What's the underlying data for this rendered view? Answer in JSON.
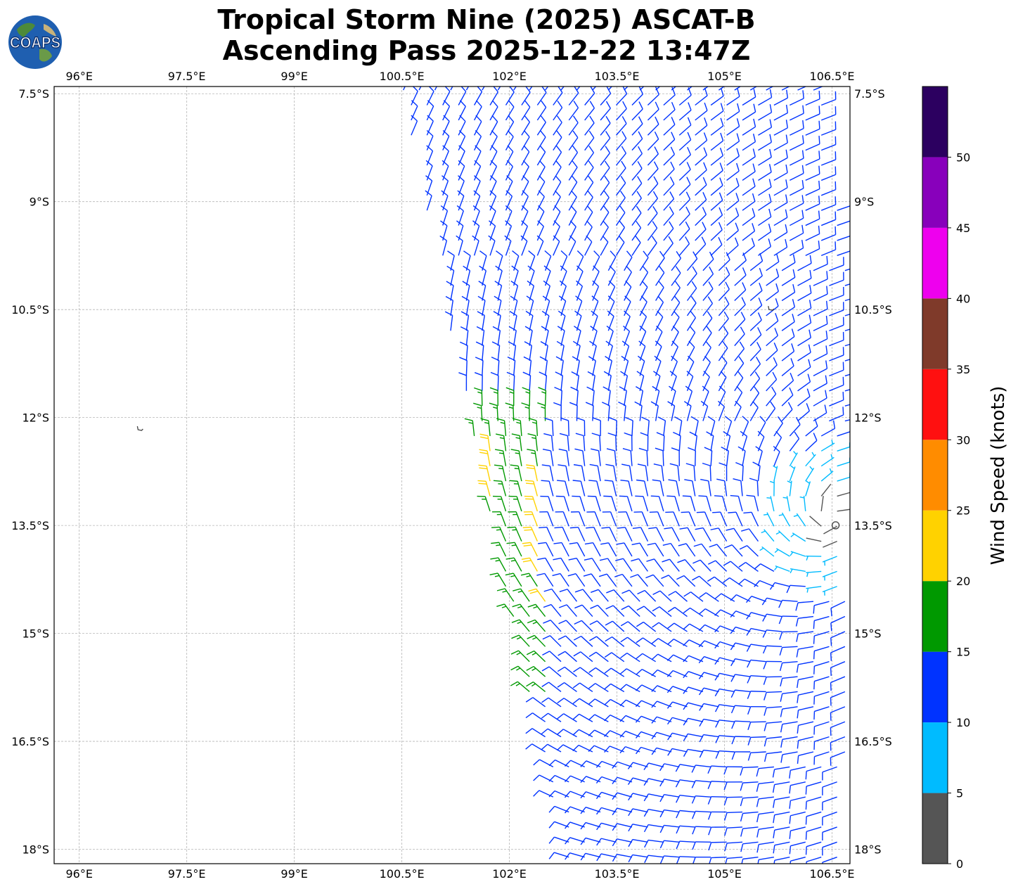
{
  "title": {
    "line1": "Tropical Storm Nine (2025) ASCAT-B",
    "line2": "Ascending Pass 2025-12-22 13:47Z"
  },
  "logo": {
    "text": "COAPS",
    "icon": "globe-logo-icon"
  },
  "map": {
    "lon_range": [
      95.65,
      106.75
    ],
    "lat_range": [
      -18.2,
      -7.4
    ],
    "x_ticks": [
      {
        "lon": 96.0,
        "label": "96°E"
      },
      {
        "lon": 97.5,
        "label": "97.5°E"
      },
      {
        "lon": 99.0,
        "label": "99°E"
      },
      {
        "lon": 100.5,
        "label": "100.5°E"
      },
      {
        "lon": 102.0,
        "label": "102°E"
      },
      {
        "lon": 103.5,
        "label": "103.5°E"
      },
      {
        "lon": 105.0,
        "label": "105°E"
      },
      {
        "lon": 106.5,
        "label": "106.5°E"
      }
    ],
    "y_ticks": [
      {
        "lat": -7.5,
        "label": "7.5°S"
      },
      {
        "lat": -9.0,
        "label": "9°S"
      },
      {
        "lat": -10.5,
        "label": "10.5°S"
      },
      {
        "lat": -12.0,
        "label": "12°S"
      },
      {
        "lat": -13.5,
        "label": "13.5°S"
      },
      {
        "lat": -15.0,
        "label": "15°S"
      },
      {
        "lat": -16.5,
        "label": "16.5°S"
      },
      {
        "lat": -18.0,
        "label": "18°S"
      }
    ],
    "gridlines": true,
    "storm_center": {
      "lon": 106.55,
      "lat": -13.4
    },
    "islands": [
      {
        "name": "cocos-island",
        "lon": 96.85,
        "lat": -12.15
      },
      {
        "name": "christmas-island",
        "lon": 105.65,
        "lat": -10.48
      }
    ]
  },
  "wind_scale": {
    "title": "Wind Speed (knots)",
    "bins": [
      {
        "min": 0,
        "max": 5,
        "color": "#555555"
      },
      {
        "min": 5,
        "max": 10,
        "color": "#00bbff"
      },
      {
        "min": 10,
        "max": 15,
        "color": "#0033ff"
      },
      {
        "min": 15,
        "max": 20,
        "color": "#009900"
      },
      {
        "min": 20,
        "max": 25,
        "color": "#ffd200"
      },
      {
        "min": 25,
        "max": 30,
        "color": "#ff8c00"
      },
      {
        "min": 30,
        "max": 35,
        "color": "#ff1010"
      },
      {
        "min": 35,
        "max": 40,
        "color": "#7f3a2a"
      },
      {
        "min": 40,
        "max": 45,
        "color": "#ee00ee"
      },
      {
        "min": 45,
        "max": 50,
        "color": "#8800bb"
      },
      {
        "min": 50,
        "max": 55,
        "color": "#2c0060"
      }
    ],
    "tick_labels": [
      "0",
      "5",
      "10",
      "15",
      "20",
      "25",
      "30",
      "35",
      "40",
      "45",
      "50"
    ]
  }
}
